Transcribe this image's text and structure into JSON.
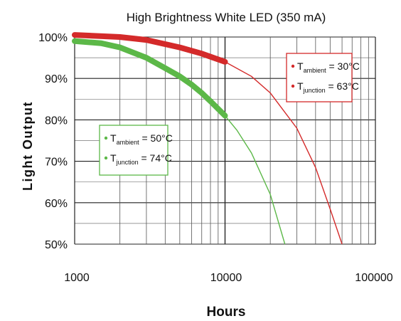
{
  "chart_data": {
    "type": "line",
    "title": "High Brightness White LED (350 mA)",
    "xlabel": "Hours",
    "ylabel": "Light Output",
    "x_scale": "log",
    "xlim": [
      1000,
      100000
    ],
    "ylim": [
      50,
      100
    ],
    "x_ticks": [
      "1000",
      "10000",
      "100000"
    ],
    "y_ticks": [
      "50%",
      "60%",
      "70%",
      "80%",
      "90%",
      "100%"
    ],
    "grid": true,
    "series": [
      {
        "color": "#d42a2a",
        "legend_lines": [
          {
            "prefix": "T",
            "sub": "ambient",
            "suffix": " = 30°C"
          },
          {
            "prefix": "T",
            "sub": "junction",
            "suffix": " = 63°C"
          }
        ],
        "legend_position": "top-right",
        "x": [
          1000,
          2000,
          3000,
          5000,
          7000,
          10000,
          15000,
          20000,
          30000,
          40000,
          50000,
          60000
        ],
        "y": [
          100.5,
          100,
          99.3,
          97.5,
          96,
          94,
          90.5,
          86.5,
          78,
          68.5,
          58.5,
          50
        ]
      },
      {
        "color": "#5cb848",
        "legend_lines": [
          {
            "prefix": "T",
            "sub": "ambient",
            "suffix": " = 50°C"
          },
          {
            "prefix": "T",
            "sub": "junction",
            "suffix": " = 74°C"
          }
        ],
        "legend_position": "center-left",
        "x": [
          1000,
          1500,
          2000,
          3000,
          4000,
          5000,
          6000,
          7000,
          8000,
          10000,
          12000,
          15000,
          20000,
          25000
        ],
        "y": [
          99,
          98.5,
          97.5,
          95,
          92.5,
          90.5,
          88.5,
          86.5,
          84.5,
          81,
          77.5,
          72,
          62,
          50
        ]
      }
    ]
  }
}
